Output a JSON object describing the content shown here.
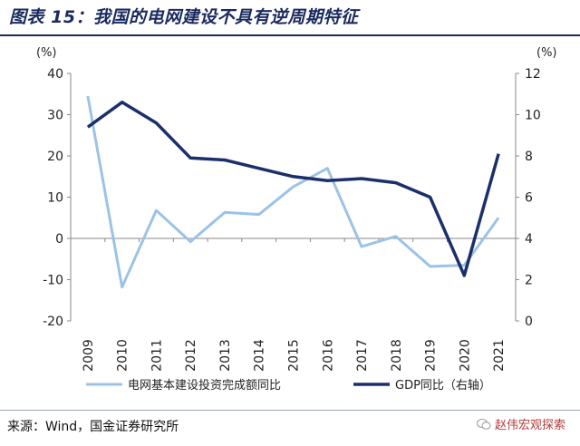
{
  "title": "图表 15：我国的电网建设不具有逆周期特征",
  "source": "来源：Wind，国金证券研究所",
  "watermark": "赵伟宏观探索",
  "chart_data": {
    "type": "line",
    "x": [
      "2009",
      "2010",
      "2011",
      "2012",
      "2013",
      "2014",
      "2015",
      "2016",
      "2017",
      "2018",
      "2019",
      "2020",
      "2021"
    ],
    "y_left_unit": "(%)",
    "y_right_unit": "(%)",
    "ylim_left": [
      -20,
      40
    ],
    "yticks_left": [
      "40",
      "30",
      "20",
      "10",
      "0",
      "-10",
      "-20"
    ],
    "ylim_right": [
      0,
      12
    ],
    "yticks_right": [
      "12",
      "10",
      "8",
      "6",
      "4",
      "2",
      "0"
    ],
    "series": [
      {
        "name": "电网基本建设投资完成额同比",
        "axis": "left",
        "color": "#9cc3e6",
        "values": [
          34.5,
          -11.8,
          6.8,
          -0.8,
          6.3,
          5.8,
          12.5,
          17,
          -2,
          0.5,
          -6.8,
          -6.5,
          5
        ]
      },
      {
        "name": "GDP同比（右轴）",
        "axis": "right",
        "color": "#1b2f6b",
        "values": [
          9.4,
          10.6,
          9.6,
          7.9,
          7.8,
          7.4,
          7.0,
          6.8,
          6.9,
          6.7,
          6.0,
          2.2,
          8.1
        ]
      }
    ],
    "legend_position": "bottom",
    "grid": false
  }
}
